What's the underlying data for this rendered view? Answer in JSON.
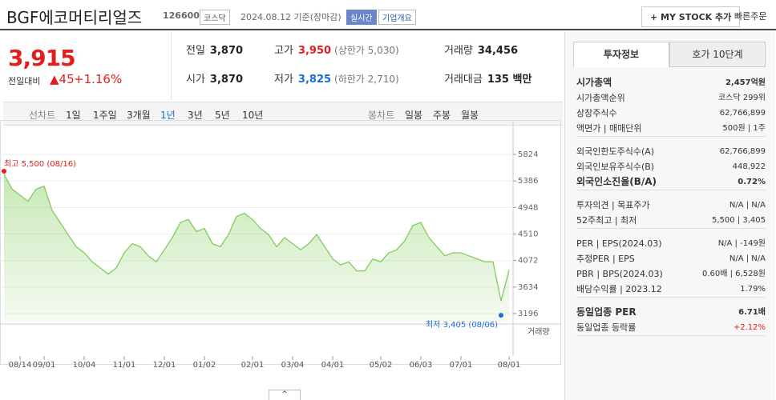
{
  "header": {
    "title": "BGF에코머티리얼즈",
    "code": "126600",
    "market": "코스닥",
    "date": "2024.08.12 기준(장마감)",
    "realtime": "실시간",
    "overview": "기업개요",
    "my_stock": "+ MY STOCK 추가",
    "quick_order": "빠른주문"
  },
  "quote": {
    "price": "3,915",
    "change_label": "전일대비",
    "change": "▲45",
    "change_pct": "+1.16%",
    "stats": [
      {
        "label": "전일",
        "value": "3,870"
      },
      {
        "label": "고가",
        "value": "3,950",
        "note": "(상한가 5,030)"
      },
      {
        "label": "거래량",
        "value": "34,456"
      },
      {
        "label": "시가",
        "value": "3,870"
      },
      {
        "label": "저가",
        "value": "3,825",
        "note": "(하한가 2,710)"
      },
      {
        "label": "거래대금",
        "value": "135 백만"
      }
    ]
  },
  "tabs": {
    "line_label": "선차트",
    "line": [
      "1일",
      "1주일",
      "3개월",
      "1년",
      "3년",
      "5년",
      "10년"
    ],
    "candle_label": "봉차트",
    "candle": [
      "일봉",
      "주봉",
      "월봉"
    ]
  },
  "chart_data": {
    "type": "line",
    "color": "#82cc5a",
    "categories": [
      null,
      null,
      "08/14",
      null,
      null,
      "09/01",
      null,
      null,
      null,
      null,
      "10/04",
      null,
      null,
      null,
      null,
      "11/01",
      null,
      null,
      null,
      null,
      "12/01",
      null,
      null,
      null,
      null,
      "01/02",
      null,
      null,
      null,
      null,
      null,
      "02/01",
      null,
      null,
      null,
      null,
      "03/04",
      null,
      null,
      null,
      null,
      "04/01",
      null,
      null,
      null,
      null,
      null,
      "05/02",
      null,
      null,
      null,
      null,
      "06/03",
      null,
      null,
      null,
      null,
      "07/01",
      null,
      null,
      null,
      null,
      null,
      "08/01"
    ],
    "values": [
      5500,
      5250,
      5150,
      5050,
      5250,
      5300,
      4900,
      4700,
      4500,
      4300,
      4200,
      4050,
      3950,
      3850,
      3950,
      4200,
      4350,
      4300,
      4150,
      4050,
      4250,
      4450,
      4700,
      4750,
      4550,
      4600,
      4350,
      4300,
      4500,
      4800,
      4850,
      4750,
      4600,
      4500,
      4300,
      4450,
      4350,
      4250,
      4350,
      4500,
      4300,
      4100,
      4000,
      4050,
      3900,
      3900,
      4100,
      4050,
      4200,
      4250,
      4400,
      4650,
      4700,
      4450,
      4300,
      4150,
      4200,
      4200,
      4150,
      4100,
      4050,
      4050,
      3405,
      3915
    ],
    "ylim": [
      3064,
      6233
    ],
    "yticks": [
      3196,
      3634,
      4072,
      4510,
      4948,
      5386,
      5824
    ],
    "high_label": "최고 5,500 (08/16)",
    "low_label": "최저 3,405 (08/06)",
    "volume_label": "거래량"
  },
  "side": {
    "tabs": [
      "투자정보",
      "호가 10단계"
    ],
    "groups": [
      [
        {
          "label": "시가총액",
          "value": "2,457억원"
        },
        {
          "label": "시가총액순위",
          "value": "코스닥 299위"
        },
        {
          "label": "상장주식수",
          "value": "62,766,899"
        },
        {
          "label": "액면가 | 매매단위",
          "value": "500원 | 1주"
        }
      ],
      [
        {
          "label": "외국인한도주식수(A)",
          "value": "62,766,899"
        },
        {
          "label": "외국인보유주식수(B)",
          "value": "448,922"
        },
        {
          "label": "외국인소진율(B/A)",
          "value": "0.72%"
        }
      ],
      [
        {
          "label": "투자의견 | 목표주가",
          "value": "N/A | N/A"
        },
        {
          "label": "52주최고 | 최저",
          "value": "5,500 | 3,405"
        }
      ],
      [
        {
          "label": "PER | EPS(2024.03)",
          "value": "N/A | -149원"
        },
        {
          "label": "추정PER | EPS",
          "value": "N/A | N/A"
        },
        {
          "label": "PBR | BPS(2024.03)",
          "value": "0.60배 | 6,528원"
        },
        {
          "label": "배당수익률 | 2023.12",
          "value": "1.79%"
        }
      ],
      [
        {
          "label": "동일업종 PER",
          "value": "6.71배"
        },
        {
          "label": "동일업종 등락률",
          "value": "+2.12%"
        }
      ]
    ]
  }
}
